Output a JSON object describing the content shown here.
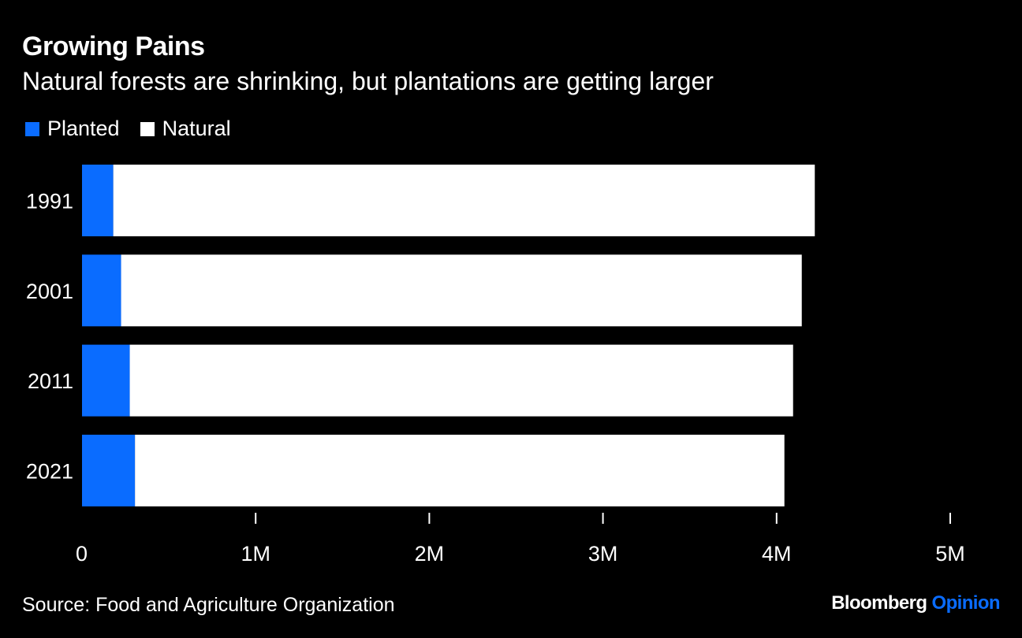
{
  "header": {
    "title": "Growing Pains",
    "subtitle": "Natural forests are shrinking, but plantations are getting larger"
  },
  "legend": {
    "planted": "Planted",
    "natural": "Natural"
  },
  "colors": {
    "planted": "#0a6cff",
    "natural": "#ffffff",
    "background": "#000000",
    "axis": "#ffffff"
  },
  "chart_data": {
    "type": "bar",
    "orientation": "horizontal",
    "stacked": true,
    "categories": [
      "1991",
      "2001",
      "2011",
      "2021"
    ],
    "series": [
      {
        "name": "Planted",
        "values": [
          180000,
          225000,
          275000,
          305000
        ]
      },
      {
        "name": "Natural",
        "values": [
          4040000,
          3920000,
          3820000,
          3740000
        ]
      }
    ],
    "xlim": [
      0,
      5000000
    ],
    "xticks": [
      0,
      1000000,
      2000000,
      3000000,
      4000000,
      5000000
    ],
    "xtick_labels": [
      "0",
      "1M",
      "2M",
      "3M",
      "4M",
      "5M"
    ],
    "title": "Growing Pains",
    "xlabel": "",
    "ylabel": "",
    "legend_position": "top-left"
  },
  "footer": {
    "source": "Source: Food and Agriculture Organization",
    "brand_main": "Bloomberg",
    "brand_accent": "Opinion"
  }
}
